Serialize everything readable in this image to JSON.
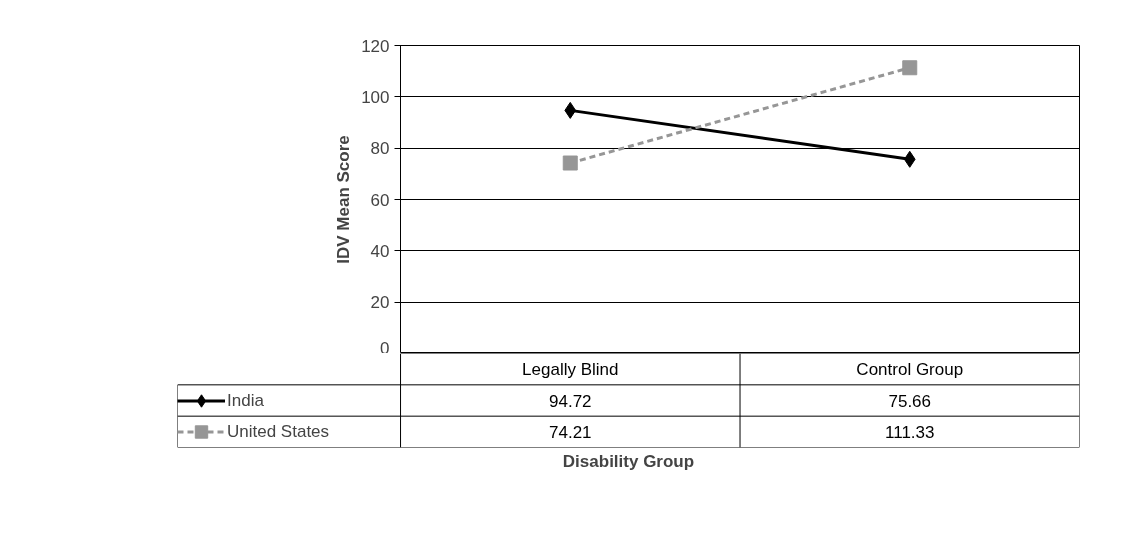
{
  "chart_data": {
    "type": "line",
    "xlabel": "Disability Group",
    "ylabel": "IDV Mean Score",
    "categories": [
      "Legally Blind",
      "Control Group"
    ],
    "series": [
      {
        "name": "India",
        "color": "#000000",
        "values": [
          94.72,
          75.66
        ],
        "marker": "diamond",
        "line_style": "solid"
      },
      {
        "name": "United States",
        "color": "#969696",
        "values": [
          74.21,
          111.33
        ],
        "marker": "square",
        "line_style": "dashed"
      }
    ],
    "ylim": [
      0,
      120
    ],
    "yticks": [
      0,
      20,
      40,
      60,
      80,
      100,
      120
    ],
    "grid": "y",
    "legend": "bottom",
    "data_labels": true,
    "tick_labels": "y"
  }
}
